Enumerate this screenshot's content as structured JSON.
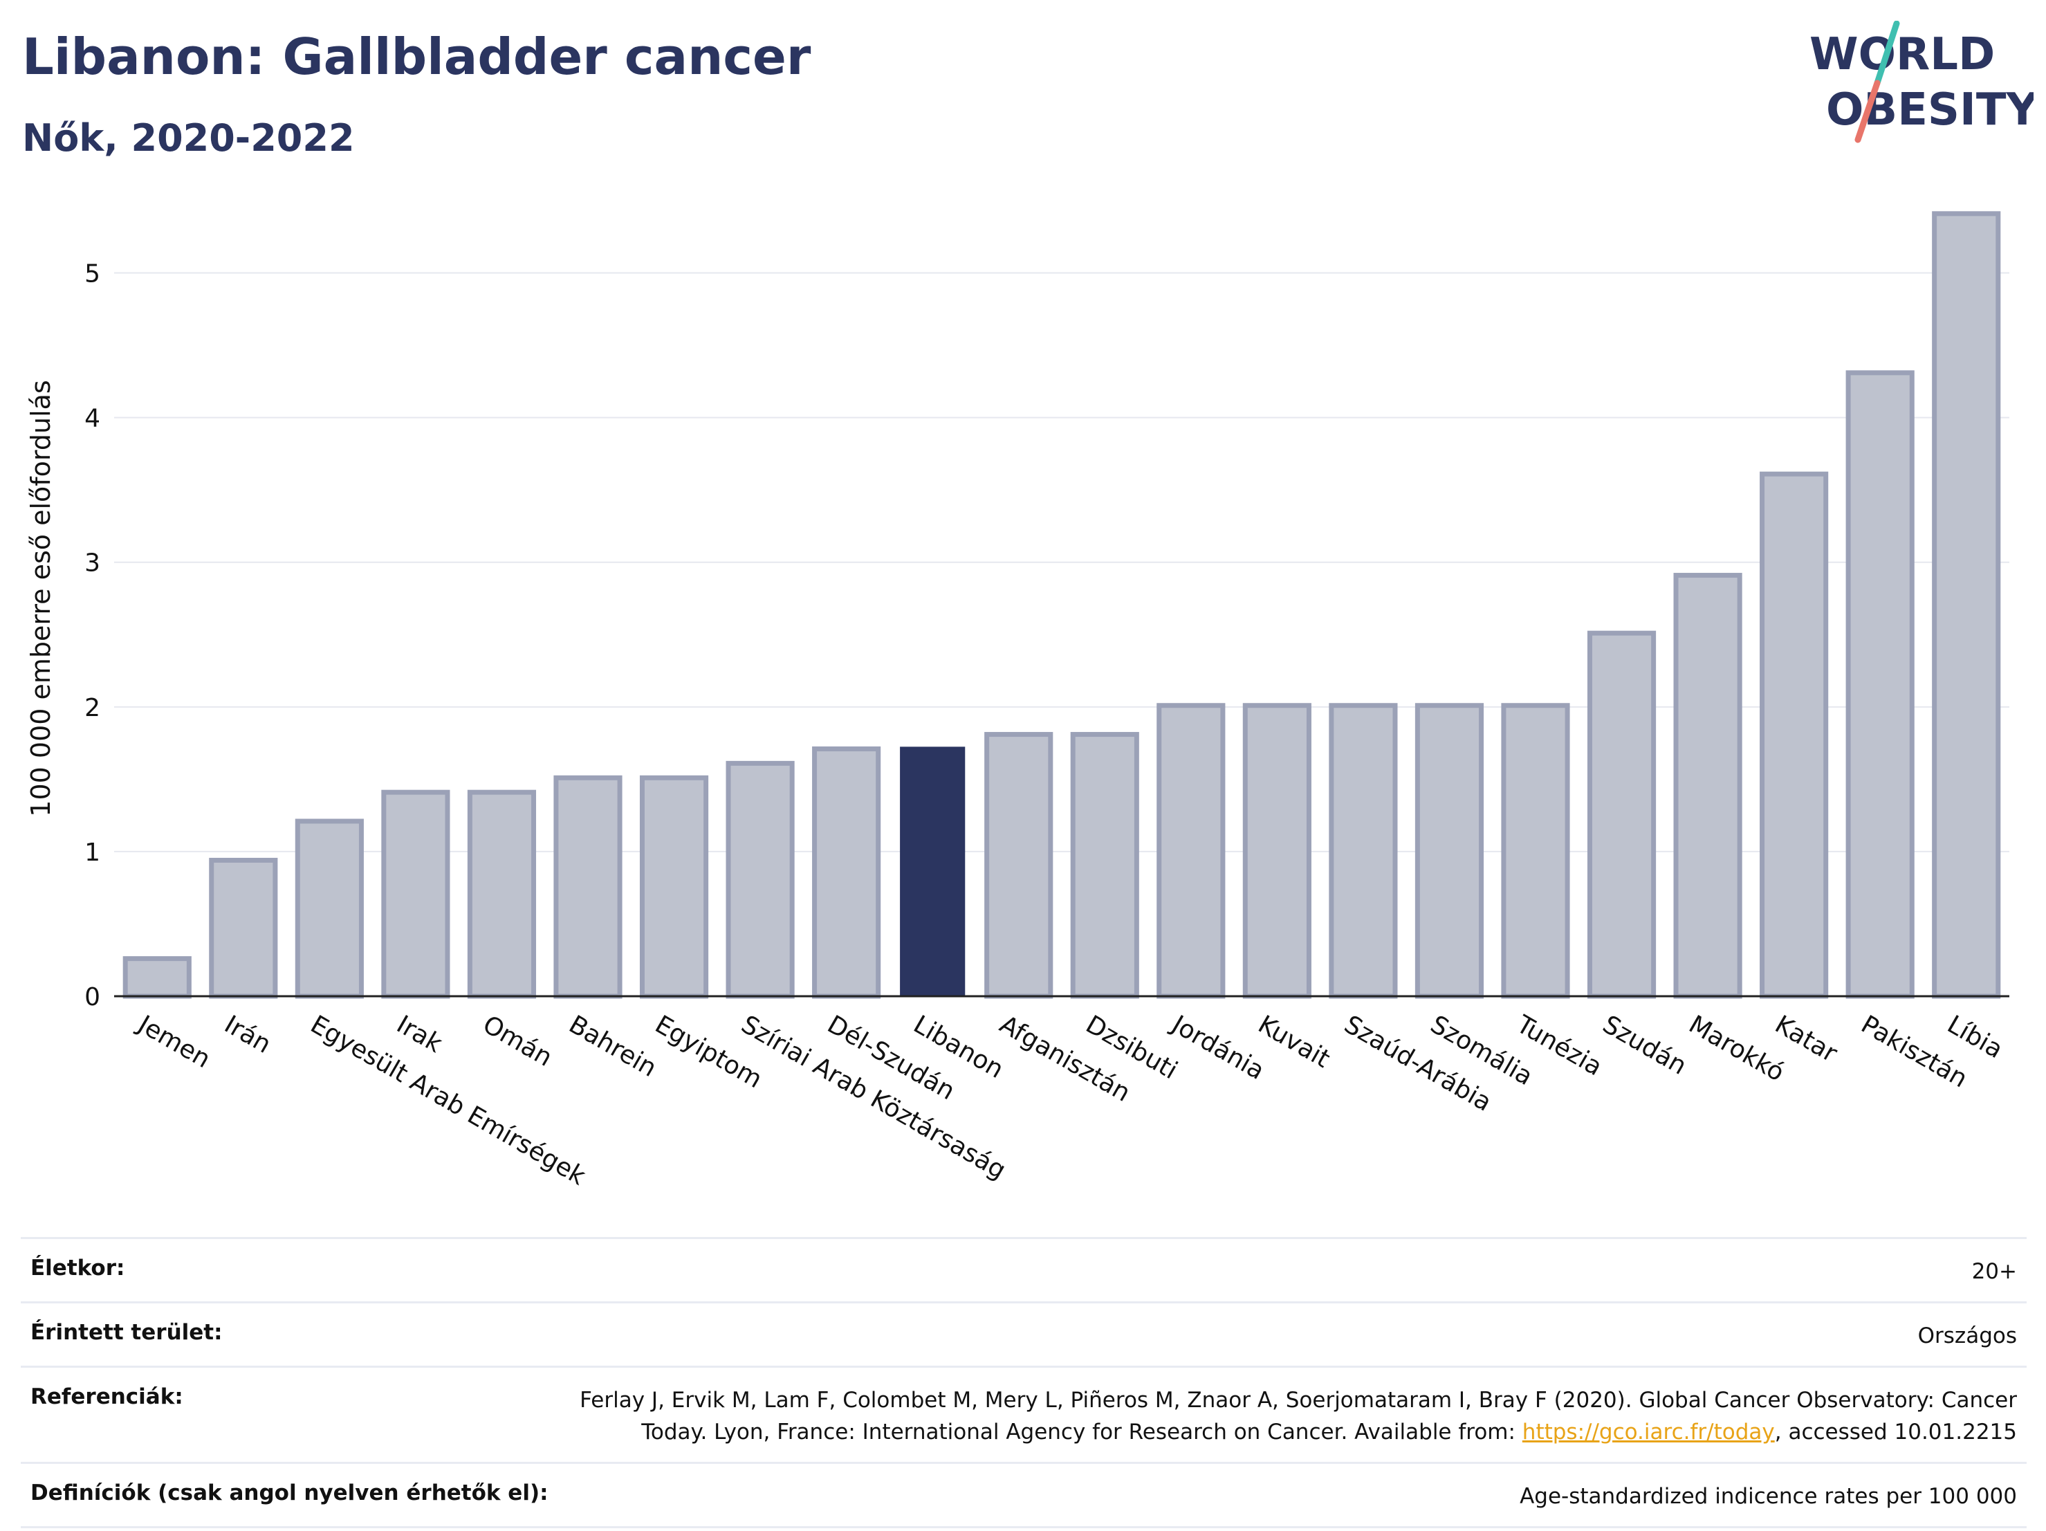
{
  "title": "Libanon: Gallbladder cancer",
  "subtitle": "Nők, 2020-2022",
  "logo": {
    "line1": "WORLD",
    "line2": "OBESITY"
  },
  "colors": {
    "highlight": "#2b3560",
    "bar_fill": "#bec2ce",
    "bar_stroke": "#9ba1b7",
    "grid": "#e6e8ef",
    "accent_teal": "#3fbfb0",
    "accent_coral": "#e8756a",
    "link": "#e8a317"
  },
  "chart_data": {
    "type": "bar",
    "title": "Libanon: Gallbladder cancer",
    "subtitle": "Nők, 2020-2022",
    "xlabel": "",
    "ylabel": "100 000 emberre eső előfordulás",
    "ylim": [
      0,
      5.5
    ],
    "yticks": [
      0,
      1,
      2,
      3,
      4,
      5
    ],
    "grid": true,
    "highlight": "Libanon",
    "categories": [
      "Jemen",
      "Irán",
      "Egyesült Arab Emírségek",
      "Irak",
      "Omán",
      "Bahrein",
      "Egyiptom",
      "Szíriai Arab Köztársaság",
      "Dél-Szudán",
      "Libanon",
      "Afganisztán",
      "Dzsibuti",
      "Jordánia",
      "Kuvait",
      "Szaúd-Arábia",
      "Szomália",
      "Tunézia",
      "Szudán",
      "Marokkó",
      "Katar",
      "Pakisztán",
      "Líbia"
    ],
    "values": [
      0.26,
      0.94,
      1.21,
      1.41,
      1.41,
      1.51,
      1.51,
      1.61,
      1.71,
      1.72,
      1.81,
      1.81,
      2.01,
      2.01,
      2.01,
      2.01,
      2.01,
      2.51,
      2.91,
      3.61,
      4.31,
      5.41
    ]
  },
  "info": [
    {
      "key": "Életkor:",
      "value": "20+"
    },
    {
      "key": "Érintett terület:",
      "value": "Országos"
    },
    {
      "key": "Referenciák:",
      "value_pre": "Ferlay J, Ervik M, Lam F, Colombet M, Mery L, Piñeros M, Znaor A, Soerjomataram I, Bray F (2020). Global Cancer Observatory: Cancer Today. Lyon, France: International Agency for Research on Cancer. Available from: ",
      "link": "https://gco.iarc.fr/today",
      "value_post": ", accessed 10.01.2215"
    },
    {
      "key": "Definíciók (csak angol nyelven érhetők el):",
      "value": "Age-standardized indicence rates per 100 000"
    }
  ]
}
